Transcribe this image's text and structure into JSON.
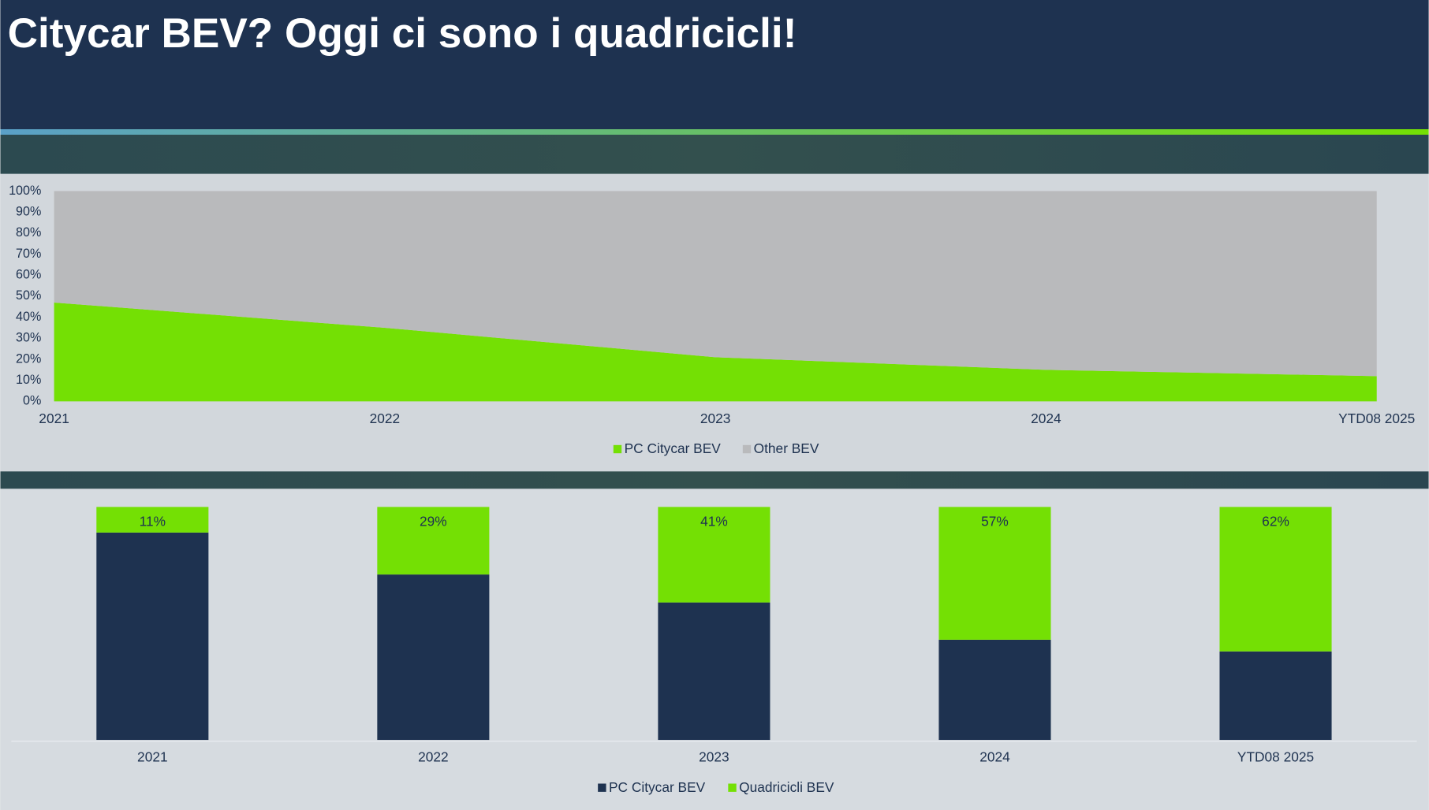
{
  "title": "Citycar BEV? Oggi ci sono i quadricicli!",
  "chart_data": [
    {
      "type": "area",
      "stacked": true,
      "categories": [
        "2021",
        "2022",
        "2023",
        "2024",
        "YTD08 2025"
      ],
      "series": [
        {
          "name": "PC Citycar BEV",
          "color": "#74e004",
          "values": [
            47,
            35,
            21,
            15,
            12
          ]
        },
        {
          "name": "Other BEV",
          "color": "#b9babc",
          "values": [
            53,
            65,
            79,
            85,
            88
          ]
        }
      ],
      "ylim": [
        0,
        100
      ],
      "yticks": [
        {
          "value": 0,
          "label": "0%"
        },
        {
          "value": 10,
          "label": "10%"
        },
        {
          "value": 20,
          "label": "20%"
        },
        {
          "value": 30,
          "label": "30%"
        },
        {
          "value": 40,
          "label": "40%"
        },
        {
          "value": 50,
          "label": "50%"
        },
        {
          "value": 60,
          "label": "60%"
        },
        {
          "value": 70,
          "label": "70%"
        },
        {
          "value": 80,
          "label": "80%"
        },
        {
          "value": 90,
          "label": "90%"
        },
        {
          "value": 100,
          "label": "100%"
        }
      ],
      "grid": false,
      "legend": "bottom"
    },
    {
      "type": "bar",
      "stacked": true,
      "categories": [
        "2021",
        "2022",
        "2023",
        "2024",
        "YTD08 2025"
      ],
      "series": [
        {
          "name": "PC Citycar BEV",
          "color": "#1e3250",
          "values": [
            89,
            71,
            59,
            43,
            38
          ]
        },
        {
          "name": "Quadricicli BEV",
          "color": "#74e004",
          "values": [
            11,
            29,
            41,
            57,
            62
          ],
          "value_labels": [
            "11%",
            "29%",
            "41%",
            "57%",
            "62%"
          ]
        }
      ],
      "ylim": [
        0,
        100
      ],
      "grid": false,
      "legend": "bottom"
    }
  ]
}
